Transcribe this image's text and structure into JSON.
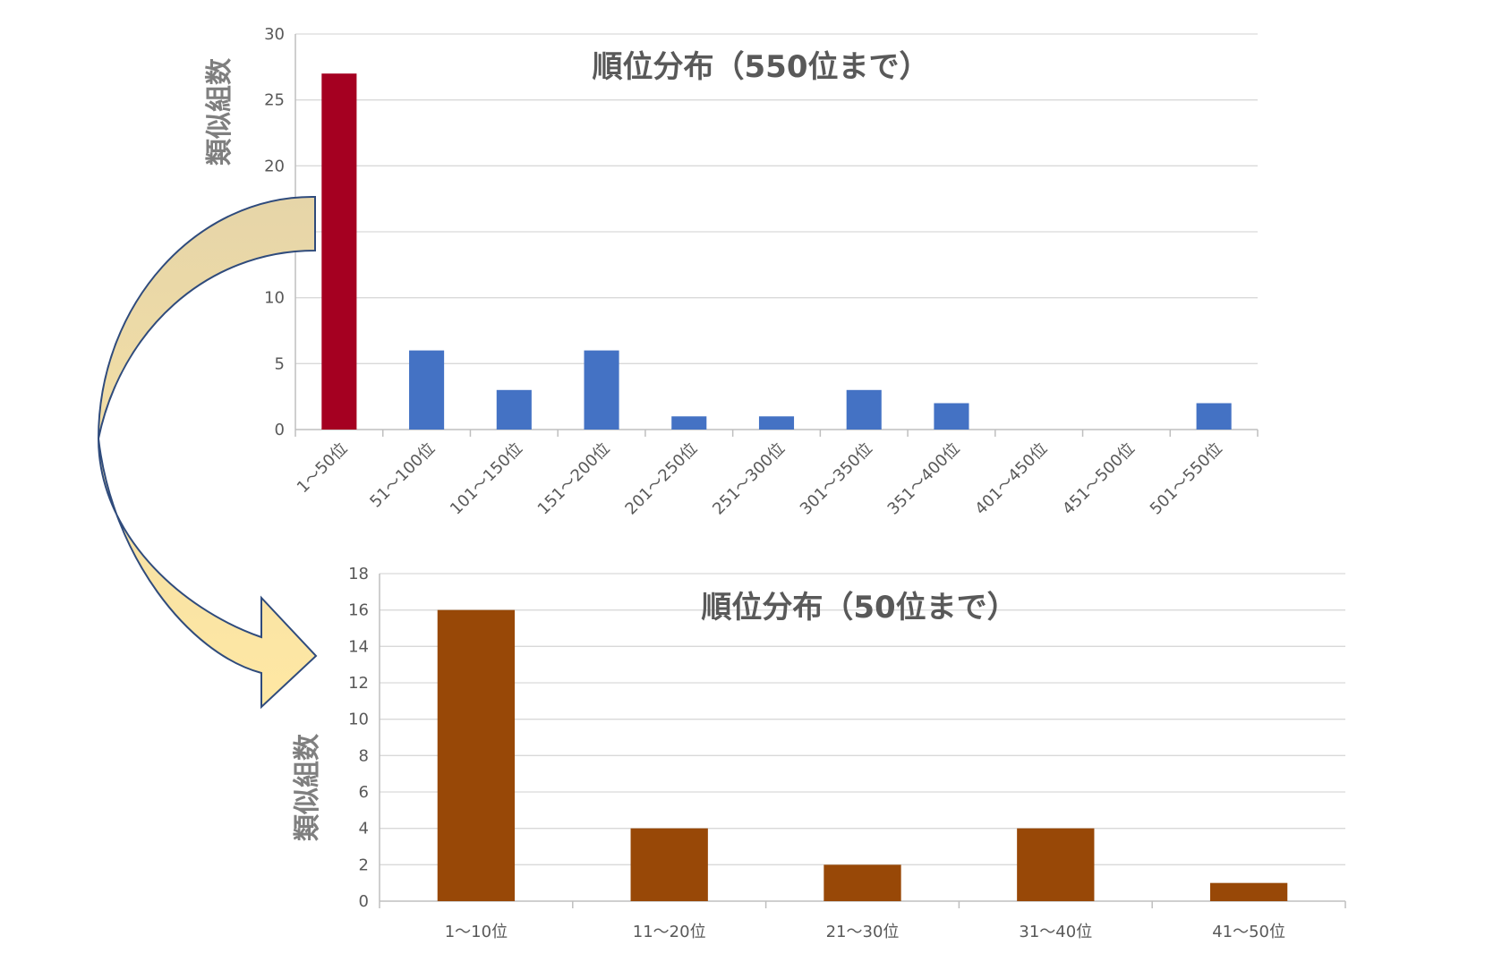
{
  "chart_data": [
    {
      "type": "bar",
      "title": "順位分布（550位まで）",
      "ylabel": "類似組数",
      "xlabel": "",
      "ylim": [
        0,
        30
      ],
      "yticks": [
        0,
        5,
        10,
        15,
        20,
        25,
        30
      ],
      "categories": [
        "1～50位",
        "51～100位",
        "101～150位",
        "151～200位",
        "201～250位",
        "251～300位",
        "301～350位",
        "351～400位",
        "401～450位",
        "451～500位",
        "501～550位"
      ],
      "values": [
        27,
        6,
        3,
        6,
        1,
        1,
        3,
        2,
        0,
        0,
        2
      ],
      "colors": {
        "highlight": "#a50021",
        "default": "#4472c4"
      },
      "grid": true,
      "legend": "none"
    },
    {
      "type": "bar",
      "title": "順位分布（50位まで）",
      "ylabel": "類似組数",
      "xlabel": "",
      "ylim": [
        0,
        18
      ],
      "yticks": [
        0,
        2,
        4,
        6,
        8,
        10,
        12,
        14,
        16,
        18
      ],
      "categories": [
        "1～10位",
        "11～20位",
        "21～30位",
        "31～40位",
        "41～50位"
      ],
      "values": [
        16,
        4,
        2,
        4,
        1
      ],
      "colors": {
        "default": "#984807"
      },
      "grid": true,
      "legend": "none"
    }
  ],
  "arrow": {
    "fill_top": "#e6d5a8",
    "fill_bottom": "#ffe8a3",
    "stroke": "#2f4b7c",
    "icon": "curved-arrow-icon"
  }
}
